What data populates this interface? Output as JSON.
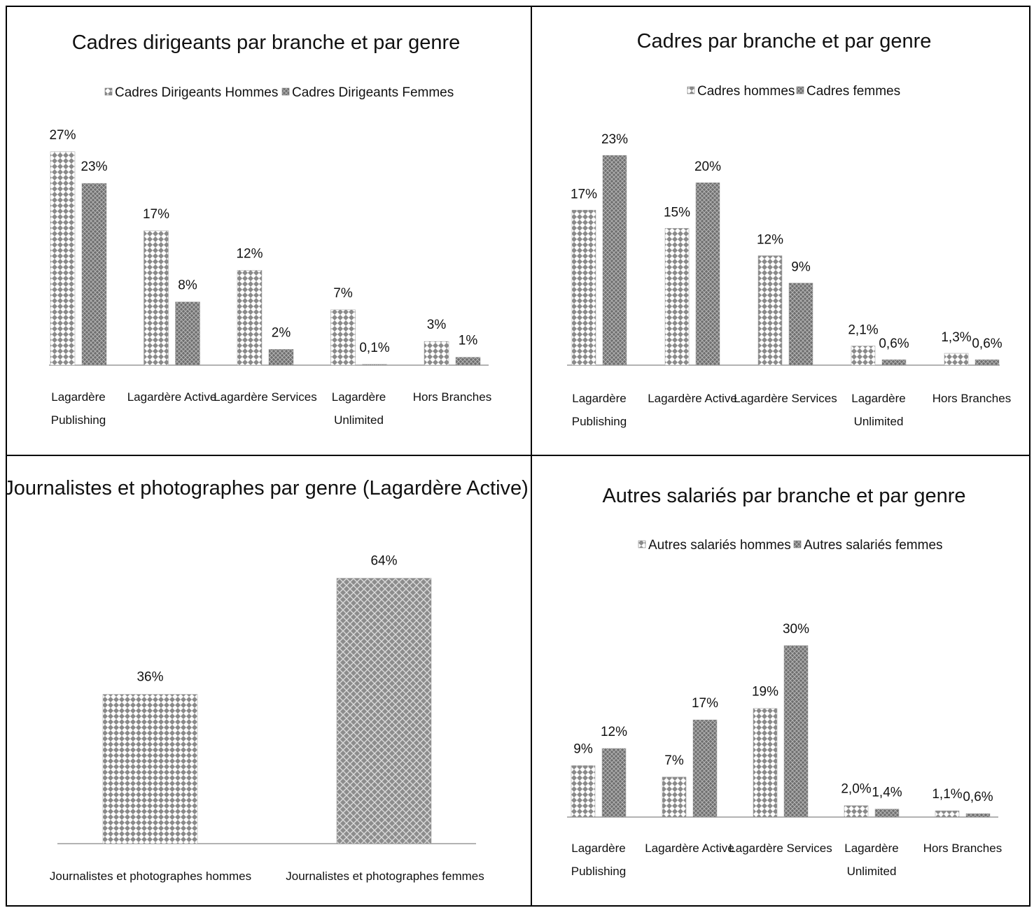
{
  "chart_data": [
    {
      "type": "bar",
      "title": "Cadres dirigeants par branche et par genre",
      "categories": [
        "Lagardère Publishing",
        "Lagardère Active",
        "Lagardère Services",
        "Lagardère Unlimited",
        "Hors Branches"
      ],
      "series": [
        {
          "name": "Cadres Dirigeants Hommes",
          "values": [
            27,
            17,
            12,
            7,
            3
          ],
          "labels": [
            "27%",
            "17%",
            "12%",
            "7%",
            "3%"
          ]
        },
        {
          "name": "Cadres Dirigeants Femmes",
          "values": [
            23,
            8,
            2,
            0.1,
            1
          ],
          "labels": [
            "23%",
            "8%",
            "2%",
            "0,1%",
            "1%"
          ]
        }
      ],
      "legend": "top",
      "ylim": [
        0,
        30
      ],
      "grid": false
    },
    {
      "type": "bar",
      "title": "Cadres par branche et par genre",
      "categories": [
        "Lagardère Publishing",
        "Lagardère Active",
        "Lagardère Services",
        "Lagardère Unlimited",
        "Hors Branches"
      ],
      "series": [
        {
          "name": "Cadres hommes",
          "values": [
            17,
            15,
            12,
            2.1,
            1.3
          ],
          "labels": [
            "17%",
            "15%",
            "12%",
            "2,1%",
            "1,3%"
          ]
        },
        {
          "name": "Cadres femmes",
          "values": [
            23,
            20,
            9,
            0.6,
            0.6
          ],
          "labels": [
            "23%",
            "20%",
            "9%",
            "0,6%",
            "0,6%"
          ]
        }
      ],
      "legend": "top",
      "ylim": [
        0,
        26
      ],
      "grid": false
    },
    {
      "type": "bar",
      "title": "Journalistes et photographes  par genre (Lagardère Active)",
      "categories": [
        "Journalistes et photographes hommes",
        "Journalistes et photographes femmes"
      ],
      "series": [
        {
          "name": "",
          "values": [
            36,
            64
          ],
          "labels": [
            "36%",
            "64%"
          ]
        }
      ],
      "legend": "none",
      "ylim": [
        0,
        70
      ],
      "grid": false
    },
    {
      "type": "bar",
      "title": "Autres salariés par branche et par genre",
      "categories": [
        "Lagardère Publishing",
        "Lagardère Active",
        "Lagardère Services",
        "Lagardère Unlimited",
        "Hors Branches"
      ],
      "series": [
        {
          "name": "Autres salariés hommes",
          "values": [
            9,
            7,
            19,
            2.0,
            1.1
          ],
          "labels": [
            "9%",
            "7%",
            "19%",
            "2,0%",
            "1,1%"
          ]
        },
        {
          "name": "Autres salariés femmes",
          "values": [
            12,
            17,
            30,
            1.4,
            0.6
          ],
          "labels": [
            "12%",
            "17%",
            "30%",
            "1,4%",
            "0,6%"
          ]
        }
      ],
      "legend": "top",
      "ylim": [
        0,
        35
      ],
      "grid": false
    }
  ],
  "colors": {
    "hommes_pattern": "#8a8a8a",
    "femmes_fill": "#7a7a7a",
    "axis": "#9a9a9a",
    "frame": "#000000"
  }
}
